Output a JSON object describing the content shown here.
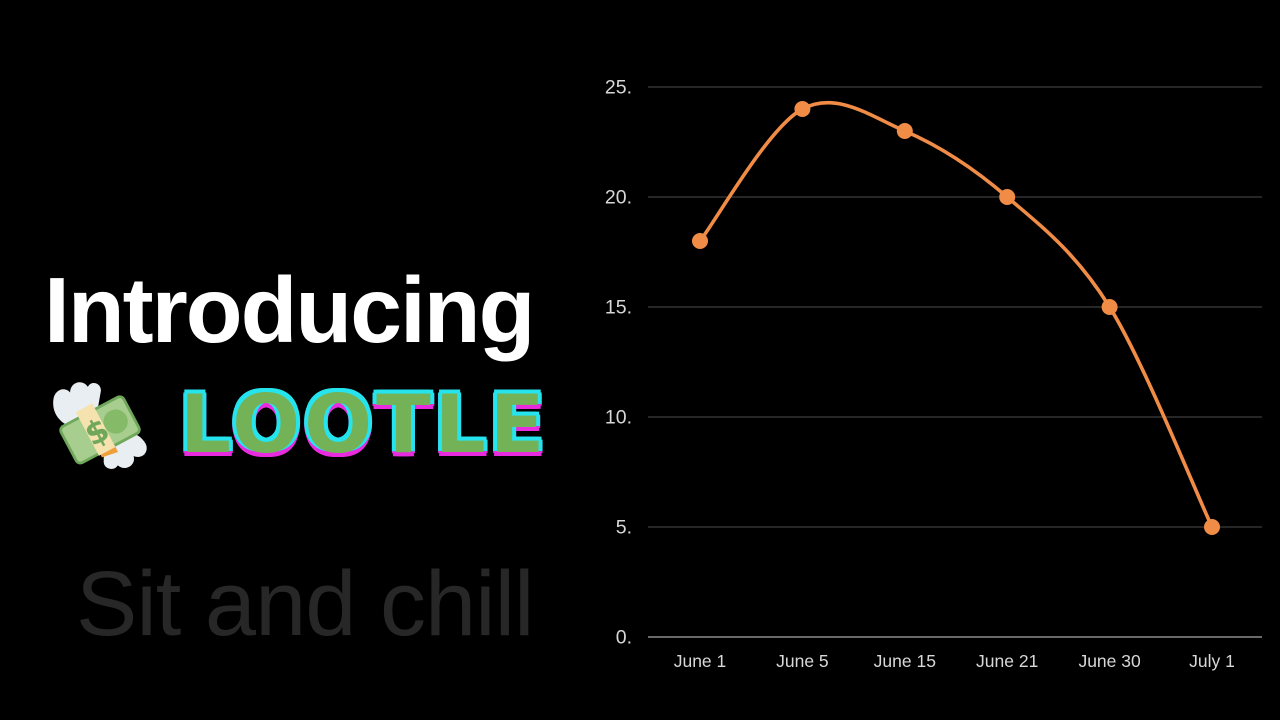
{
  "slide": {
    "background": "#000000",
    "title": "Introducing",
    "brand": "LOOTLE",
    "tagline": "Sit and chill",
    "icon": "money-with-wings"
  },
  "colors": {
    "title_text": "#ffffff",
    "brand_green": "#74B257",
    "brand_glitch_cyan": "#26E4EE",
    "brand_glitch_magenta": "#E82BDE",
    "tagline_text": "#272727",
    "line_orange": "#F08C46",
    "gridline": "#3d3d3d",
    "axis_line": "#8c8c8c",
    "tick_text": "#d8d8d8"
  },
  "chart_data": {
    "type": "line",
    "categories": [
      "June 1",
      "June 5",
      "June 15",
      "June 21",
      "June 30",
      "July 1"
    ],
    "values": [
      18,
      24,
      23,
      20,
      15,
      5
    ],
    "series_name": "",
    "title": "",
    "xlabel": "",
    "ylabel": "",
    "y_ticks": [
      0,
      5,
      10,
      15,
      20,
      25
    ],
    "y_tick_labels": [
      "0.",
      "5.",
      "10.",
      "15.",
      "20.",
      "25."
    ],
    "ylim": [
      0,
      25.5
    ],
    "grid": true,
    "legend_position": "none",
    "marker": "circle",
    "line_color": "#F08C46",
    "smooth": true
  }
}
